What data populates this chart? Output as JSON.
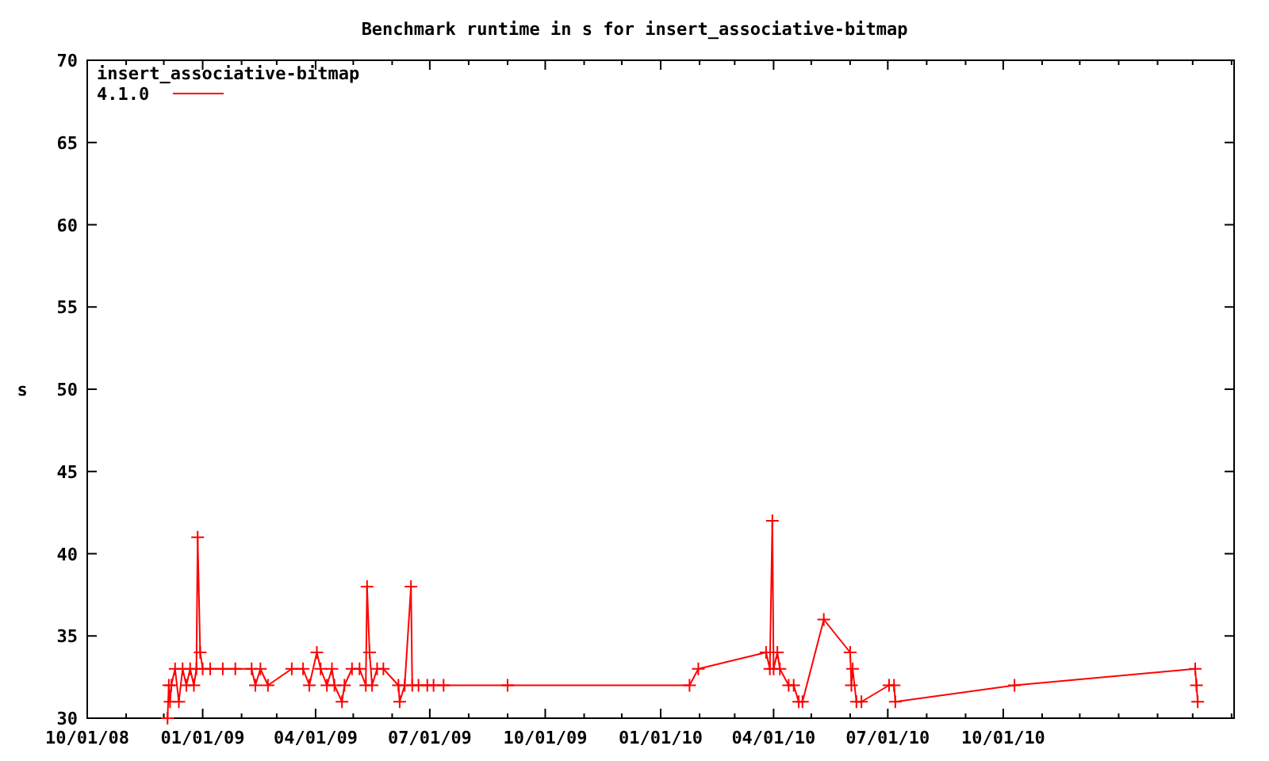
{
  "chart_data": {
    "type": "line",
    "title": "Benchmark runtime in s for insert_associative-bitmap",
    "ylabel": "s",
    "legend_title": "insert_associative-bitmap",
    "legend": "top left",
    "marker": "cross",
    "line_style": "solid",
    "grid": false,
    "xlim": [
      "2008-10-01",
      "2011-04-03"
    ],
    "xticks": [
      {
        "value": "2008-10-01",
        "label": "10/01/08"
      },
      {
        "value": "2008-11-01",
        "label": null
      },
      {
        "value": "2008-12-01",
        "label": null
      },
      {
        "value": "2009-01-01",
        "label": "01/01/09"
      },
      {
        "value": "2009-02-01",
        "label": null
      },
      {
        "value": "2009-03-01",
        "label": null
      },
      {
        "value": "2009-04-01",
        "label": "04/01/09"
      },
      {
        "value": "2009-05-01",
        "label": null
      },
      {
        "value": "2009-06-01",
        "label": null
      },
      {
        "value": "2009-07-01",
        "label": "07/01/09"
      },
      {
        "value": "2009-08-01",
        "label": null
      },
      {
        "value": "2009-09-01",
        "label": null
      },
      {
        "value": "2009-10-01",
        "label": "10/01/09"
      },
      {
        "value": "2009-11-01",
        "label": null
      },
      {
        "value": "2009-12-01",
        "label": null
      },
      {
        "value": "2010-01-01",
        "label": "01/01/10"
      },
      {
        "value": "2010-02-01",
        "label": null
      },
      {
        "value": "2010-03-01",
        "label": null
      },
      {
        "value": "2010-04-01",
        "label": "04/01/10"
      },
      {
        "value": "2010-05-01",
        "label": null
      },
      {
        "value": "2010-06-01",
        "label": null
      },
      {
        "value": "2010-07-01",
        "label": "07/01/10"
      },
      {
        "value": "2010-08-01",
        "label": null
      },
      {
        "value": "2010-09-01",
        "label": null
      },
      {
        "value": "2010-10-01",
        "label": "10/01/10"
      },
      {
        "value": "2010-11-01",
        "label": null
      },
      {
        "value": "2010-12-01",
        "label": null
      },
      {
        "value": "2011-01-01",
        "label": null
      },
      {
        "value": "2011-02-01",
        "label": null
      },
      {
        "value": "2011-03-01",
        "label": null
      },
      {
        "value": "2011-04-01",
        "label": null
      }
    ],
    "ylim": [
      30,
      70
    ],
    "yticks": [
      30,
      35,
      40,
      45,
      50,
      55,
      60,
      65,
      70
    ],
    "series": [
      {
        "name": "4.1.0",
        "color": "#ff0000",
        "x": [
          "2008-12-04",
          "2008-12-05",
          "2008-12-06",
          "2008-12-07",
          "2008-12-10",
          "2008-12-13",
          "2008-12-16",
          "2008-12-19",
          "2008-12-22",
          "2008-12-25",
          "2008-12-27",
          "2008-12-28",
          "2008-12-30",
          "2009-01-01",
          "2009-01-07",
          "2009-01-17",
          "2009-01-27",
          "2009-02-09",
          "2009-02-12",
          "2009-02-16",
          "2009-02-22",
          "2009-03-13",
          "2009-03-22",
          "2009-03-27",
          "2009-04-02",
          "2009-04-05",
          "2009-04-10",
          "2009-04-14",
          "2009-04-16",
          "2009-04-22",
          "2009-04-24",
          "2009-04-30",
          "2009-05-06",
          "2009-05-11",
          "2009-05-12",
          "2009-05-14",
          "2009-05-16",
          "2009-05-20",
          "2009-05-25",
          "2009-06-06",
          "2009-06-07",
          "2009-06-11",
          "2009-06-16",
          "2009-06-17",
          "2009-06-22",
          "2009-06-29",
          "2009-07-04",
          "2009-07-12",
          "2009-09-01",
          "2010-01-24",
          "2010-01-31",
          "2010-03-26",
          "2010-03-29",
          "2010-03-31",
          "2010-04-01",
          "2010-04-04",
          "2010-04-06",
          "2010-04-13",
          "2010-04-17",
          "2010-04-21",
          "2010-04-24",
          "2010-05-11",
          "2010-06-01",
          "2010-06-02",
          "2010-06-03",
          "2010-06-06",
          "2010-06-10",
          "2010-07-02",
          "2010-07-06",
          "2010-07-07",
          "2010-10-10",
          "2011-03-03",
          "2011-03-04",
          "2011-03-05"
        ],
        "values": [
          30,
          32,
          31,
          32,
          33,
          31,
          33,
          32,
          33,
          32,
          33,
          41,
          34,
          33,
          33,
          33,
          33,
          33,
          32,
          33,
          32,
          33,
          33,
          32,
          34,
          33,
          32,
          33,
          32,
          31,
          32,
          33,
          33,
          32,
          38,
          34,
          32,
          33,
          33,
          32,
          31,
          32,
          38,
          32,
          32,
          32,
          32,
          32,
          32,
          32,
          33,
          34,
          33,
          42,
          33,
          34,
          33,
          32,
          32,
          31,
          31,
          36,
          34,
          32,
          33,
          31,
          31,
          32,
          32,
          31,
          32,
          33,
          32,
          31
        ]
      }
    ]
  }
}
